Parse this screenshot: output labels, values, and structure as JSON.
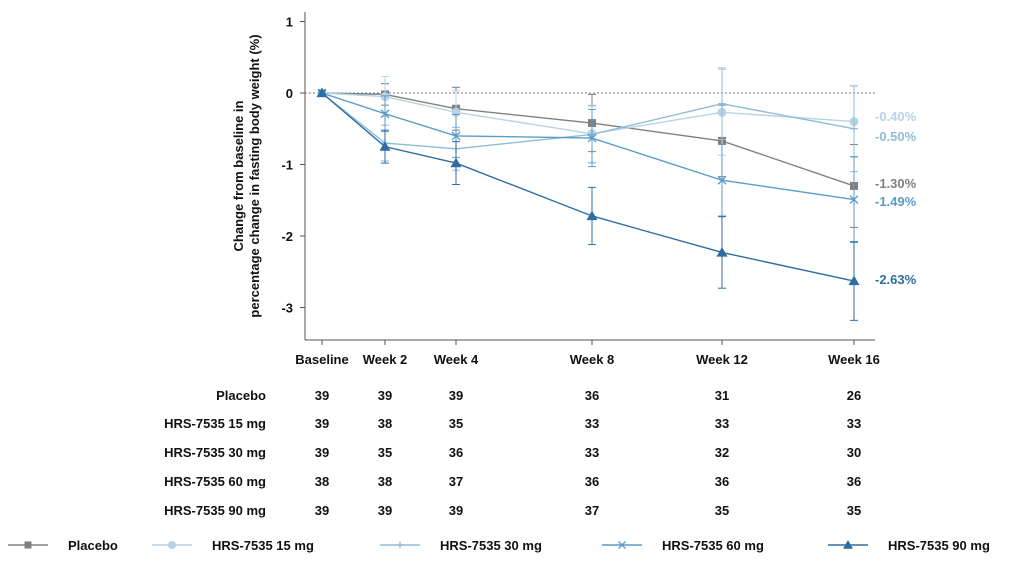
{
  "chart_data": {
    "type": "line",
    "ylabel": [
      "Change from baseline in",
      "percentage change in fasting body weight (%)"
    ],
    "ylim": [
      -3.4,
      1.15
    ],
    "yticks": [
      1,
      0,
      -1,
      -2,
      -3
    ],
    "reference_line": 0,
    "categories": [
      "Baseline",
      "Week 2",
      "Week 4",
      "Week 8",
      "Week 12",
      "Week 16"
    ],
    "x": [
      0,
      2,
      4,
      8,
      12,
      16
    ],
    "series": [
      {
        "name": "Placebo",
        "color": "#808080",
        "marker": "square",
        "values": [
          0,
          -0.02,
          -0.22,
          -0.42,
          -0.67,
          -1.3
        ],
        "error": [
          0.03,
          0.15,
          0.3,
          0.4,
          0.5,
          0.58
        ],
        "end_label": "-1.30%"
      },
      {
        "name": "HRS-7535 15 mg",
        "color": "#b7d3e6",
        "marker": "circle",
        "values": [
          0,
          -0.05,
          -0.27,
          -0.57,
          -0.27,
          -0.4
        ],
        "error": [
          0.03,
          0.28,
          0.3,
          0.4,
          0.6,
          0.5
        ],
        "end_label": "-0.40%"
      },
      {
        "name": "HRS-7535 30 mg",
        "color": "#8fbcd9",
        "marker": "plus",
        "values": [
          0,
          -0.7,
          -0.78,
          -0.58,
          -0.15,
          -0.5
        ],
        "error": [
          0.03,
          0.25,
          0.3,
          0.4,
          0.5,
          0.6
        ],
        "end_label": "-0.50%"
      },
      {
        "name": "HRS-7535 60 mg",
        "color": "#5a9cc8",
        "marker": "x",
        "values": [
          0,
          -0.29,
          -0.6,
          -0.63,
          -1.22,
          -1.49
        ],
        "error": [
          0.03,
          0.25,
          0.3,
          0.4,
          0.5,
          0.6
        ],
        "end_label": "-1.49%"
      },
      {
        "name": "HRS-7535 90 mg",
        "color": "#2e6da4",
        "marker": "triangle",
        "values": [
          0,
          -0.75,
          -0.98,
          -1.72,
          -2.23,
          -2.63
        ],
        "error": [
          0.03,
          0.23,
          0.3,
          0.4,
          0.5,
          0.55
        ],
        "end_label": "-2.63%"
      }
    ]
  },
  "at_risk_table": {
    "rows": [
      {
        "label": "Placebo",
        "counts": [
          "39",
          "39",
          "39",
          "36",
          "31",
          "26"
        ]
      },
      {
        "label": "HRS-7535 15 mg",
        "counts": [
          "39",
          "38",
          "35",
          "33",
          "33",
          "33"
        ]
      },
      {
        "label": "HRS-7535 30 mg",
        "counts": [
          "39",
          "35",
          "36",
          "33",
          "32",
          "30"
        ]
      },
      {
        "label": "HRS-7535 60 mg",
        "counts": [
          "38",
          "38",
          "37",
          "36",
          "36",
          "36"
        ]
      },
      {
        "label": "HRS-7535 90 mg",
        "counts": [
          "39",
          "39",
          "39",
          "37",
          "35",
          "35"
        ]
      }
    ]
  }
}
